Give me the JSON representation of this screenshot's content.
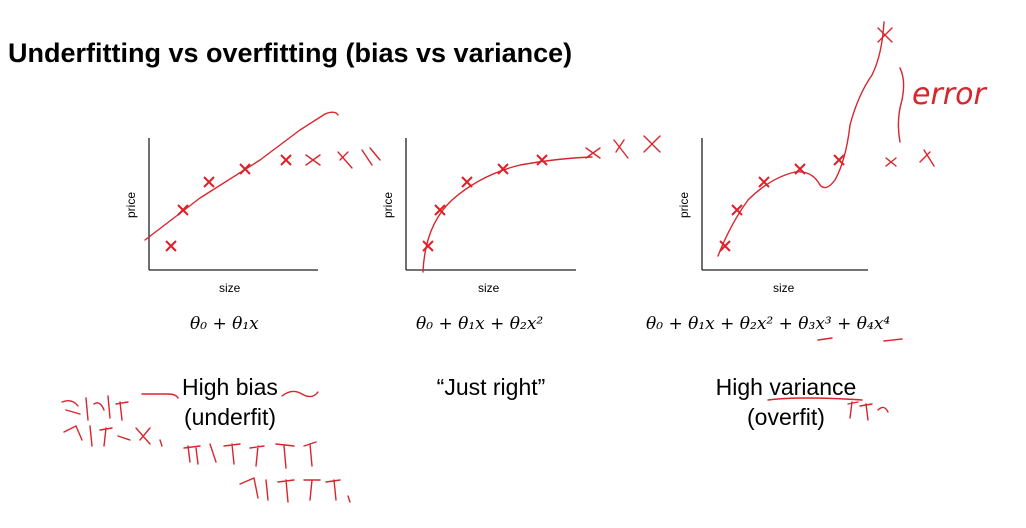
{
  "slide": {
    "title": "Underfitting vs overfitting (bias vs variance)"
  },
  "panels": [
    {
      "ylabel": "price",
      "xlabel": "size",
      "formula": "θ₀ + θ₁x",
      "caption_line1": "High bias",
      "caption_line2": "(underfit)"
    },
    {
      "ylabel": "price",
      "xlabel": "size",
      "formula": "θ₀ + θ₁x + θ₂x²",
      "caption_line1": "“Just right”",
      "caption_line2": ""
    },
    {
      "ylabel": "price",
      "xlabel": "size",
      "formula": "θ₀ + θ₁x + θ₂x² + θ₃x³ + θ₄x⁴",
      "caption_line1": "High variance",
      "caption_line2": "(overfit)"
    }
  ],
  "annotations": {
    "error": "error"
  },
  "colors": {
    "marker": "#e41e26",
    "ink": "#d7262e"
  }
}
